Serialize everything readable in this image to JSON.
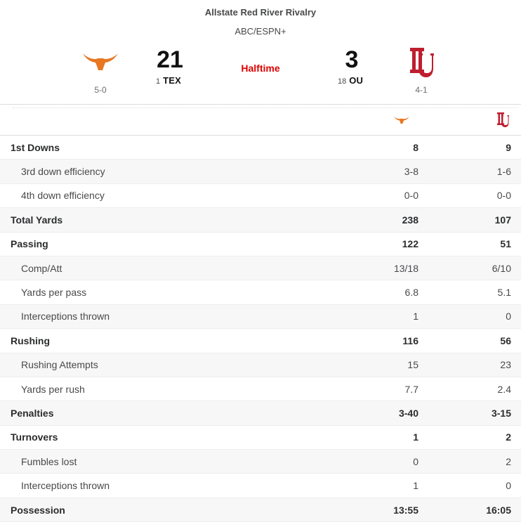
{
  "game": {
    "title": "Allstate Red River Rivalry",
    "network": "ABC/ESPN+",
    "status": "Halftime"
  },
  "home": {
    "abbr": "TEX",
    "rank": "1",
    "score": "21",
    "record": "5-0",
    "logo_icon": "longhorn-logo",
    "color": "#E87722"
  },
  "away": {
    "abbr": "OU",
    "rank": "18",
    "score": "3",
    "record": "4-1",
    "logo_icon": "ou-logo",
    "color": "#BF1E2E"
  },
  "stats": [
    {
      "label": "1st Downs",
      "tex": "8",
      "ou": "9",
      "level": "main"
    },
    {
      "label": "3rd down efficiency",
      "tex": "3-8",
      "ou": "1-6",
      "level": "sub"
    },
    {
      "label": "4th down efficiency",
      "tex": "0-0",
      "ou": "0-0",
      "level": "sub"
    },
    {
      "label": "Total Yards",
      "tex": "238",
      "ou": "107",
      "level": "main"
    },
    {
      "label": "Passing",
      "tex": "122",
      "ou": "51",
      "level": "main"
    },
    {
      "label": "Comp/Att",
      "tex": "13/18",
      "ou": "6/10",
      "level": "sub"
    },
    {
      "label": "Yards per pass",
      "tex": "6.8",
      "ou": "5.1",
      "level": "sub"
    },
    {
      "label": "Interceptions thrown",
      "tex": "1",
      "ou": "0",
      "level": "sub"
    },
    {
      "label": "Rushing",
      "tex": "116",
      "ou": "56",
      "level": "main"
    },
    {
      "label": "Rushing Attempts",
      "tex": "15",
      "ou": "23",
      "level": "sub"
    },
    {
      "label": "Yards per rush",
      "tex": "7.7",
      "ou": "2.4",
      "level": "sub"
    },
    {
      "label": "Penalties",
      "tex": "3-40",
      "ou": "3-15",
      "level": "main"
    },
    {
      "label": "Turnovers",
      "tex": "1",
      "ou": "2",
      "level": "main"
    },
    {
      "label": "Fumbles lost",
      "tex": "0",
      "ou": "2",
      "level": "sub"
    },
    {
      "label": "Interceptions thrown",
      "tex": "1",
      "ou": "0",
      "level": "sub"
    },
    {
      "label": "Possession",
      "tex": "13:55",
      "ou": "16:05",
      "level": "main"
    }
  ]
}
